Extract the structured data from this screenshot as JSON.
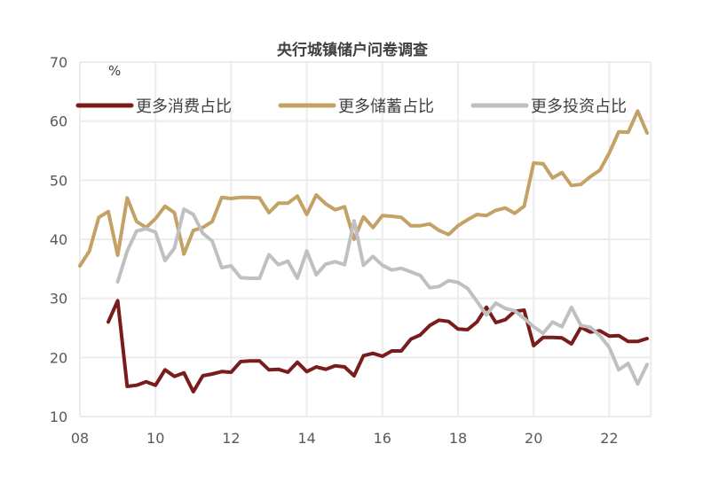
{
  "chart_data": {
    "type": "line",
    "title": "央行城镇储户问卷调查",
    "ylabel": "%",
    "xlabel": "",
    "xlim": [
      2008,
      2023.1
    ],
    "ylim": [
      10,
      70
    ],
    "yticks": [
      10,
      20,
      30,
      40,
      50,
      60,
      70
    ],
    "xticks": [
      2008,
      2010,
      2012,
      2014,
      2016,
      2018,
      2020,
      2022
    ],
    "xtick_labels": [
      "08",
      "10",
      "12",
      "14",
      "16",
      "18",
      "20",
      "22"
    ],
    "grid": true,
    "legend_position": "top",
    "series": [
      {
        "name": "更多消费占比",
        "color": "#7b1c1c",
        "start": 2008.75,
        "step": 0.25,
        "values": [
          26,
          29.6,
          15.1,
          15.3,
          15.9,
          15.3,
          17.9,
          16.8,
          17.4,
          14.2,
          16.9,
          17.2,
          17.6,
          17.5,
          19.3,
          19.4,
          19.4,
          17.9,
          18.0,
          17.5,
          19.2,
          17.6,
          18.4,
          18.0,
          18.6,
          18.4,
          16.9,
          20.3,
          20.7,
          20.2,
          21.1,
          21.1,
          23.1,
          23.8,
          25.4,
          26.3,
          26.1,
          24.8,
          24.7,
          26.0,
          28.5,
          25.9,
          26.4,
          27.8,
          28.0,
          22.0,
          23.4,
          23.4,
          23.3,
          22.3,
          25.1,
          24.3,
          24.5,
          23.6,
          23.7,
          22.7,
          22.7,
          23.2
        ]
      },
      {
        "name": "更多储蓄占比",
        "color": "#c4a265",
        "start": 2008.0,
        "step": 0.25,
        "values": [
          35.5,
          38,
          43.7,
          44.7,
          37.3,
          47,
          43,
          42,
          43.5,
          45.6,
          44.5,
          37.5,
          41.5,
          42,
          43,
          47.1,
          46.9,
          47.1,
          47.1,
          47,
          44.5,
          46.1,
          46.1,
          47.3,
          44.2,
          47.5,
          46,
          45,
          45.5,
          40,
          43.8,
          42,
          44,
          43.9,
          43.7,
          42.3,
          42.3,
          42.6,
          41.5,
          40.8,
          42.3,
          43.3,
          44.2,
          44,
          44.9,
          45.3,
          44.4,
          45.6,
          52.9,
          52.8,
          50.4,
          51.3,
          49.1,
          49.3,
          50.6,
          51.7,
          54.6,
          58.2,
          58.1,
          61.7,
          58.0
        ]
      },
      {
        "name": "更多投资占比",
        "color": "#c0c0c0",
        "start": 2009.0,
        "step": 0.25,
        "values": [
          32.8,
          38,
          41.4,
          41.8,
          41.2,
          36.4,
          38.5,
          45.1,
          44.2,
          41,
          39.7,
          35.2,
          35.5,
          33.5,
          33.4,
          33.4,
          37.4,
          35.7,
          36.3,
          33.4,
          38,
          34,
          35.8,
          36.2,
          35.7,
          43.1,
          35.6,
          37.1,
          35.6,
          34.8,
          35.1,
          34.5,
          33.9,
          31.8,
          32,
          33,
          32.7,
          31.7,
          29.5,
          27.2,
          29.2,
          28.3,
          27.9,
          26.6,
          25.2,
          24.1,
          26,
          25.2,
          28.5,
          25.4,
          25.1,
          23.7,
          21.7,
          17.9,
          19,
          15.5,
          18.8
        ]
      }
    ]
  }
}
